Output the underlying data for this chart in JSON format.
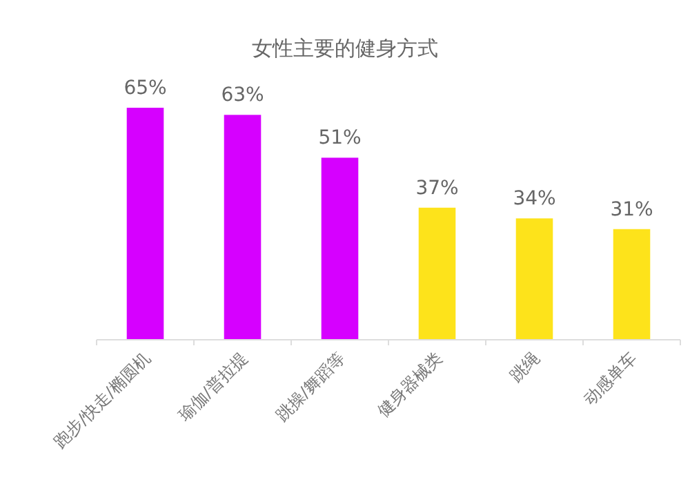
{
  "chart_data": {
    "type": "bar",
    "title": "女性主要的健身方式",
    "categories": [
      "跑步/快走/椭圆机",
      "瑜伽/普拉提",
      "跳操/舞蹈等",
      "健身器械类",
      "跳绳",
      "动感单车"
    ],
    "values": [
      65,
      63,
      51,
      37,
      34,
      31
    ],
    "colors": [
      "#d600ff",
      "#d600ff",
      "#d600ff",
      "#fde31b",
      "#fde31b",
      "#fde31b"
    ],
    "value_labels": [
      "65%",
      "63%",
      "51%",
      "37%",
      "34%",
      "31%"
    ]
  }
}
